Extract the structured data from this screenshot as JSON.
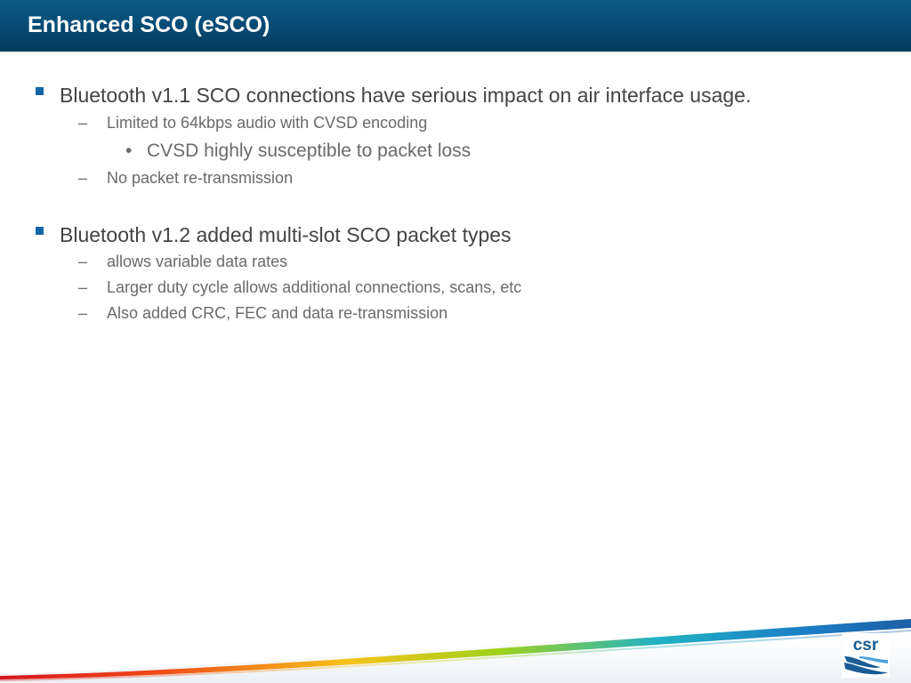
{
  "slide": {
    "title": "Enhanced SCO (eSCO)",
    "bullets": [
      {
        "text": "Bluetooth v1.1 SCO connections have serious impact on air interface usage.",
        "sub": [
          {
            "text": "Limited to 64kbps audio with CVSD encoding",
            "sub": [
              "CVSD highly susceptible to packet loss"
            ]
          },
          {
            "text": "No packet re-transmission"
          }
        ]
      },
      {
        "text": "Bluetooth v1.2 added multi-slot SCO packet types",
        "sub": [
          {
            "text": "allows variable data rates"
          },
          {
            "text": "Larger duty cycle allows additional connections, scans, etc"
          },
          {
            "text": "Also added CRC, FEC and data re-transmission"
          }
        ]
      }
    ],
    "sub_marker": "–",
    "subsub_marker": "•",
    "logo_text": "csr",
    "colors": {
      "title_bar": "#074a73",
      "bullet_square": "#1166a8",
      "logo_blue": "#1a5c94"
    }
  }
}
